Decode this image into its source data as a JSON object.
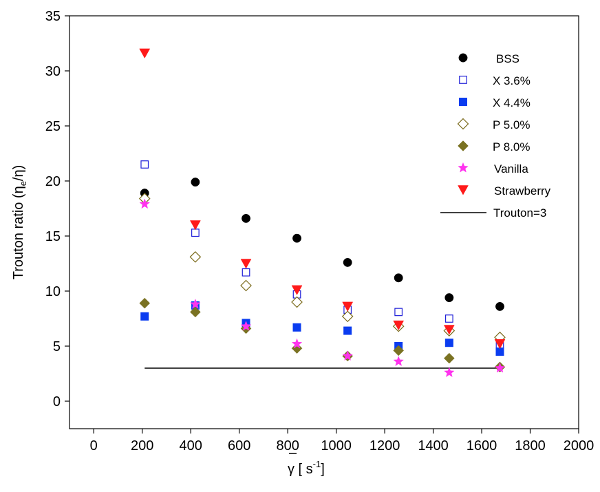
{
  "chart_data": {
    "type": "scatter",
    "title": "",
    "xlabel": {
      "main": "γ",
      "unit_open": " [ s",
      "unit_exp": "-1",
      "unit_close": "]"
    },
    "ylabel": {
      "main": "Trouton ratio (η",
      "sub": "e",
      "rest": "/η)"
    },
    "xlim": [
      -100,
      2000
    ],
    "ylim": [
      -2.5,
      35
    ],
    "xticks": [
      0,
      200,
      400,
      600,
      800,
      1000,
      1200,
      1400,
      1600,
      1800,
      2000
    ],
    "yticks": [
      0,
      5,
      10,
      15,
      20,
      25,
      30,
      35
    ],
    "grid": false,
    "legend_position": "top-right",
    "x": [
      210,
      419,
      628,
      838,
      1047,
      1257,
      1466,
      1675
    ],
    "series": [
      {
        "name": "BSS",
        "marker": "circle",
        "filled": true,
        "color": "#000000",
        "values": [
          18.9,
          19.9,
          16.6,
          14.8,
          12.6,
          11.2,
          9.4,
          8.6
        ]
      },
      {
        "name": "X 3.6%",
        "marker": "square",
        "filled": false,
        "color": "#1f1fd8",
        "values": [
          21.5,
          15.3,
          11.7,
          9.7,
          8.3,
          8.1,
          7.5,
          5.0
        ]
      },
      {
        "name": "X 4.4%",
        "marker": "square",
        "filled": true,
        "color": "#0a3cf0",
        "values": [
          7.7,
          8.7,
          7.1,
          6.7,
          6.4,
          5.0,
          5.3,
          4.5
        ]
      },
      {
        "name": "P 5.0%",
        "marker": "diamond",
        "filled": false,
        "color": "#7a6a1a",
        "values": [
          18.4,
          13.1,
          10.5,
          9.0,
          7.7,
          6.8,
          6.4,
          5.8
        ]
      },
      {
        "name": "P 8.0%",
        "marker": "diamond",
        "filled": true,
        "color": "#7a7222",
        "values": [
          8.9,
          8.1,
          6.6,
          4.8,
          4.1,
          4.6,
          3.9,
          3.1
        ]
      },
      {
        "name": "Vanilla",
        "marker": "star",
        "filled": true,
        "color": "#ff33ee",
        "values": [
          17.9,
          8.8,
          6.8,
          5.2,
          4.1,
          3.6,
          2.6,
          3.0
        ]
      },
      {
        "name": "Strawberry",
        "marker": "triangle-down",
        "filled": true,
        "color": "#ff1a1a",
        "values": [
          31.6,
          16.0,
          12.5,
          10.1,
          8.6,
          6.9,
          6.5,
          5.2
        ]
      }
    ],
    "reference_line": {
      "name": "Trouton=3",
      "color": "#000000",
      "x": [
        210,
        1675
      ],
      "y": [
        3,
        3
      ]
    }
  }
}
